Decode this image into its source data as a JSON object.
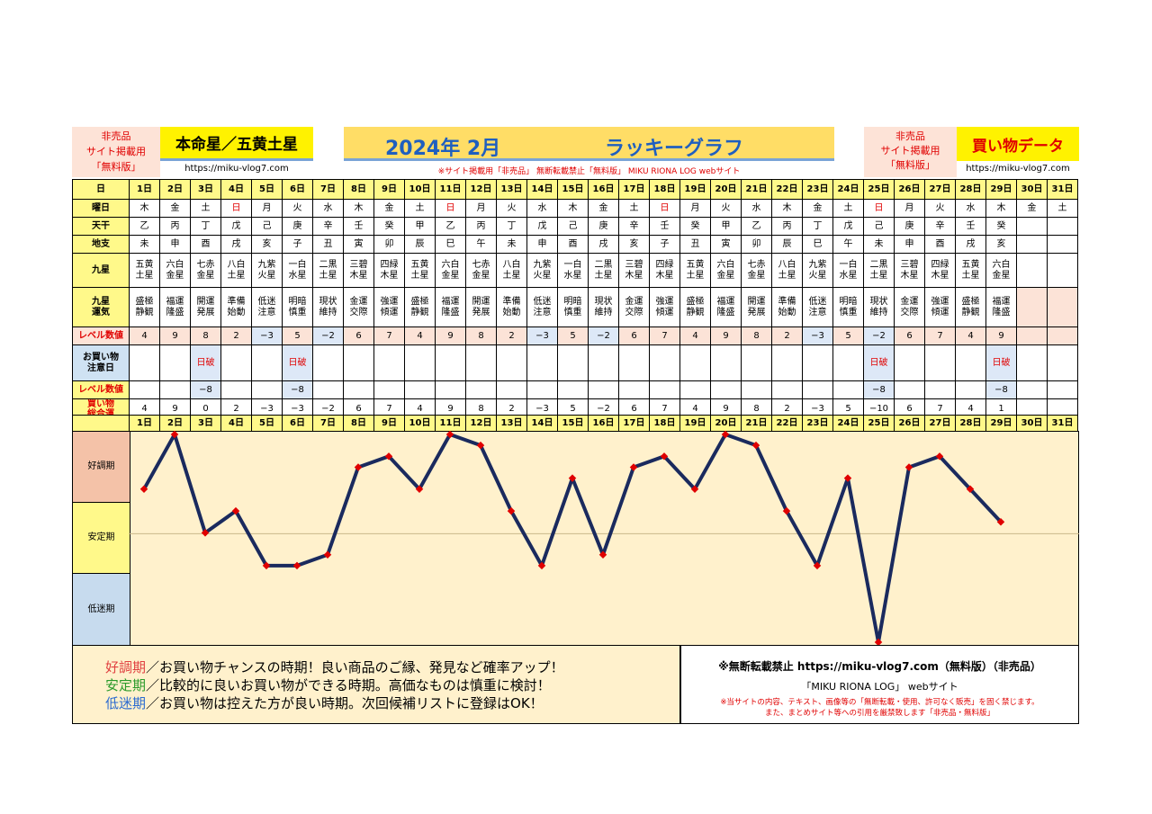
{
  "header": {
    "left_notice": [
      "非売品",
      "サイト掲載用",
      "「無料版」"
    ],
    "left_title": "本命星／五黄土星",
    "left_url": "https://miku-vlog7.com",
    "center_title_year": "2024年 2月",
    "center_title_name": "ラッキーグラフ",
    "center_subtitle": "※サイト掲載用「非売品」 無断転載禁止「無料版」 MIKU RIONA LOG webサイト",
    "right_notice": [
      "非売品",
      "サイト掲載用",
      "「無料版」"
    ],
    "right_title": "買い物データ",
    "right_url": "https://miku-vlog7.com"
  },
  "row_labels": {
    "day": "日",
    "weekday": "曜日",
    "tenkan": "天干",
    "chishi": "地支",
    "kyusei": "九星",
    "kyusei_unki": [
      "九星",
      "運気"
    ],
    "level1": "レベル数値",
    "caution": [
      "お買い物",
      "注意日"
    ],
    "level2": "レベル数値",
    "total": [
      "買い物",
      "総合運"
    ]
  },
  "days": [
    "1日",
    "2日",
    "3日",
    "4日",
    "5日",
    "6日",
    "7日",
    "8日",
    "9日",
    "10日",
    "11日",
    "12日",
    "13日",
    "14日",
    "15日",
    "16日",
    "17日",
    "18日",
    "19日",
    "20日",
    "21日",
    "22日",
    "23日",
    "24日",
    "25日",
    "26日",
    "27日",
    "28日",
    "29日",
    "30日",
    "31日"
  ],
  "weekdays": [
    "木",
    "金",
    "土",
    "日",
    "月",
    "火",
    "水",
    "木",
    "金",
    "土",
    "日",
    "月",
    "火",
    "水",
    "木",
    "金",
    "土",
    "日",
    "月",
    "火",
    "水",
    "木",
    "金",
    "土",
    "日",
    "月",
    "火",
    "水",
    "木",
    "金",
    "土"
  ],
  "tenkan": [
    "乙",
    "丙",
    "丁",
    "戊",
    "己",
    "庚",
    "辛",
    "壬",
    "癸",
    "甲",
    "乙",
    "丙",
    "丁",
    "戊",
    "己",
    "庚",
    "辛",
    "壬",
    "癸",
    "甲",
    "乙",
    "丙",
    "丁",
    "戊",
    "己",
    "庚",
    "辛",
    "壬",
    "癸",
    "",
    ""
  ],
  "chishi": [
    "未",
    "申",
    "酉",
    "戌",
    "亥",
    "子",
    "丑",
    "寅",
    "卯",
    "辰",
    "巳",
    "午",
    "未",
    "申",
    "酉",
    "戌",
    "亥",
    "子",
    "丑",
    "寅",
    "卯",
    "辰",
    "巳",
    "午",
    "未",
    "申",
    "酉",
    "戌",
    "亥",
    "",
    ""
  ],
  "kyusei": [
    [
      "五黄",
      "土星"
    ],
    [
      "六白",
      "金星"
    ],
    [
      "七赤",
      "金星"
    ],
    [
      "八白",
      "土星"
    ],
    [
      "九紫",
      "火星"
    ],
    [
      "一白",
      "水星"
    ],
    [
      "二黒",
      "土星"
    ],
    [
      "三碧",
      "木星"
    ],
    [
      "四緑",
      "木星"
    ],
    [
      "五黄",
      "土星"
    ],
    [
      "六白",
      "金星"
    ],
    [
      "七赤",
      "金星"
    ],
    [
      "八白",
      "土星"
    ],
    [
      "九紫",
      "火星"
    ],
    [
      "一白",
      "水星"
    ],
    [
      "二黒",
      "土星"
    ],
    [
      "三碧",
      "木星"
    ],
    [
      "四緑",
      "木星"
    ],
    [
      "五黄",
      "土星"
    ],
    [
      "六白",
      "金星"
    ],
    [
      "七赤",
      "金星"
    ],
    [
      "八白",
      "土星"
    ],
    [
      "九紫",
      "火星"
    ],
    [
      "一白",
      "水星"
    ],
    [
      "二黒",
      "土星"
    ],
    [
      "三碧",
      "木星"
    ],
    [
      "四緑",
      "木星"
    ],
    [
      "五黄",
      "土星"
    ],
    [
      "六白",
      "金星"
    ],
    [
      "",
      ""
    ],
    [
      "",
      ""
    ]
  ],
  "unki": [
    [
      "盛極",
      "静観"
    ],
    [
      "福運",
      "隆盛"
    ],
    [
      "開運",
      "発展"
    ],
    [
      "準備",
      "始動"
    ],
    [
      "低迷",
      "注意"
    ],
    [
      "明暗",
      "慎重"
    ],
    [
      "現状",
      "維持"
    ],
    [
      "金運",
      "交際"
    ],
    [
      "強運",
      "傾運"
    ],
    [
      "盛極",
      "静観"
    ],
    [
      "福運",
      "隆盛"
    ],
    [
      "開運",
      "発展"
    ],
    [
      "準備",
      "始動"
    ],
    [
      "低迷",
      "注意"
    ],
    [
      "明暗",
      "慎重"
    ],
    [
      "現状",
      "維持"
    ],
    [
      "金運",
      "交際"
    ],
    [
      "強運",
      "傾運"
    ],
    [
      "盛極",
      "静観"
    ],
    [
      "福運",
      "隆盛"
    ],
    [
      "開運",
      "発展"
    ],
    [
      "準備",
      "始動"
    ],
    [
      "低迷",
      "注意"
    ],
    [
      "明暗",
      "慎重"
    ],
    [
      "現状",
      "維持"
    ],
    [
      "金運",
      "交際"
    ],
    [
      "強運",
      "傾運"
    ],
    [
      "盛極",
      "静観"
    ],
    [
      "福運",
      "隆盛"
    ],
    [
      "",
      ""
    ],
    [
      "",
      ""
    ]
  ],
  "level1": [
    "4",
    "9",
    "8",
    "2",
    "−3",
    "5",
    "−2",
    "6",
    "7",
    "4",
    "9",
    "8",
    "2",
    "−3",
    "5",
    "−2",
    "6",
    "7",
    "4",
    "9",
    "8",
    "2",
    "−3",
    "5",
    "−2",
    "6",
    "7",
    "4",
    "9",
    "",
    ""
  ],
  "caution": [
    "",
    "",
    "日破",
    "",
    "",
    "日破",
    "",
    "",
    "",
    "",
    "",
    "",
    "",
    "",
    "",
    "",
    "",
    "",
    "",
    "",
    "",
    "",
    "",
    "",
    "日破",
    "",
    "",
    "",
    "日破",
    "",
    ""
  ],
  "level2": [
    "",
    "",
    "−8",
    "",
    "",
    "−8",
    "",
    "",
    "",
    "",
    "",
    "",
    "",
    "",
    "",
    "",
    "",
    "",
    "",
    "",
    "",
    "",
    "",
    "",
    "−8",
    "",
    "",
    "",
    "−8",
    "",
    ""
  ],
  "total": [
    "4",
    "9",
    "0",
    "2",
    "−3",
    "−3",
    "−2",
    "6",
    "7",
    "4",
    "9",
    "8",
    "2",
    "−3",
    "5",
    "−2",
    "6",
    "7",
    "4",
    "9",
    "8",
    "2",
    "−3",
    "5",
    "−10",
    "6",
    "7",
    "4",
    "1",
    "",
    ""
  ],
  "graph_labels": [
    "好調期",
    "安定期",
    "低迷期"
  ],
  "chart_data": {
    "type": "line",
    "x": [
      1,
      2,
      3,
      4,
      5,
      6,
      7,
      8,
      9,
      10,
      11,
      12,
      13,
      14,
      15,
      16,
      17,
      18,
      19,
      20,
      21,
      22,
      23,
      24,
      25,
      26,
      27,
      28,
      29
    ],
    "values": [
      4,
      9,
      0,
      2,
      -3,
      -3,
      -2,
      6,
      7,
      4,
      9,
      8,
      2,
      -3,
      5,
      -2,
      6,
      7,
      4,
      9,
      8,
      2,
      -3,
      5,
      -10,
      6,
      7,
      4,
      1
    ],
    "ylim": [
      -10,
      9
    ],
    "line_color": "#1a2a5e",
    "marker_color": "#e00000"
  },
  "footer": {
    "legend": [
      {
        "term": "好調期",
        "text": "／お買い物チャンスの時期！良い商品のご縁、発見など確率アップ！",
        "color": "#e04040"
      },
      {
        "term": "安定期",
        "text": "／比較的に良いお買い物ができる時期。高価なものは慎重に検討！",
        "color": "#2a9a2a"
      },
      {
        "term": "低迷期",
        "text": "／お買い物は控えた方が良い時期。次回候補リストに登録はOK！",
        "color": "#2a6ad0"
      }
    ],
    "notice_line1": "※無断転載禁止 https://miku-vlog7.com（無料版）（非売品）",
    "notice_line2": "「MIKU RIONA LOG」 webサイト",
    "notice_line3": "※当サイトの内容、テキスト、画像等の「無断転載・使用、許可なく販売」を固く禁じます。",
    "notice_line4": "また、まとめサイト等への引用を厳禁致します「非売品・無料版」"
  }
}
